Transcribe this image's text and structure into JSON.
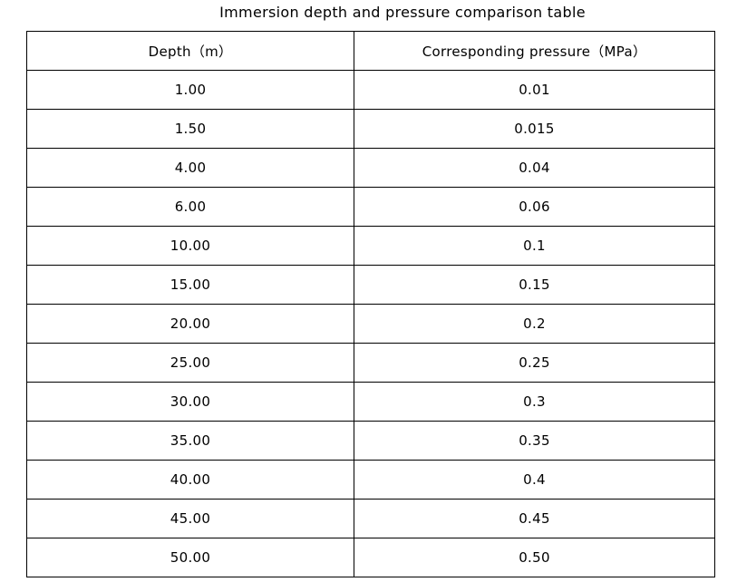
{
  "title": "Immersion depth and pressure comparison table",
  "table": {
    "headers": [
      "Depth（m）",
      "Corresponding pressure（MPa）"
    ],
    "rows": [
      [
        "1.00",
        "0.01"
      ],
      [
        "1.50",
        "0.015"
      ],
      [
        "4.00",
        "0.04"
      ],
      [
        "6.00",
        "0.06"
      ],
      [
        "10.00",
        "0.1"
      ],
      [
        "15.00",
        "0.15"
      ],
      [
        "20.00",
        "0.2"
      ],
      [
        "25.00",
        "0.25"
      ],
      [
        "30.00",
        "0.3"
      ],
      [
        "35.00",
        "0.35"
      ],
      [
        "40.00",
        "0.4"
      ],
      [
        "45.00",
        "0.45"
      ],
      [
        "50.00",
        "0.50"
      ]
    ]
  }
}
